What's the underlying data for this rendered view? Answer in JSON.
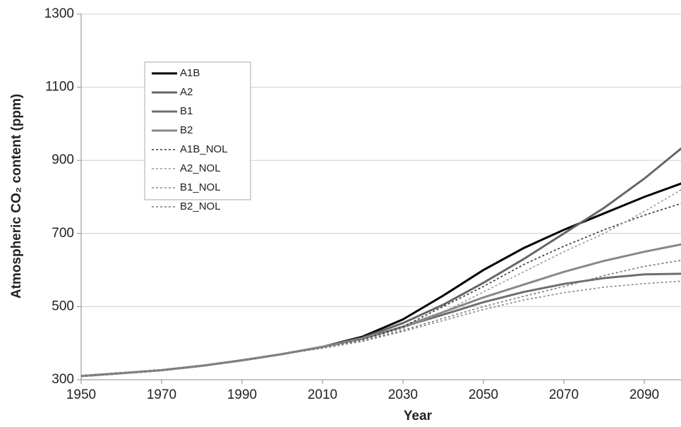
{
  "chart_data": {
    "type": "line",
    "xlabel": "Year",
    "ylabel": "Atmospheric CO₂ content (ppm)",
    "x": [
      1950,
      1960,
      1970,
      1980,
      1990,
      2000,
      2010,
      2020,
      2030,
      2040,
      2050,
      2060,
      2070,
      2080,
      2090,
      2100
    ],
    "xlim": [
      1950,
      2100
    ],
    "xticks": [
      1950,
      1970,
      1990,
      2010,
      2030,
      2050,
      2070,
      2090
    ],
    "ylim": [
      300,
      1300
    ],
    "yticks": [
      300,
      500,
      700,
      900,
      1100,
      1300
    ],
    "grid": true,
    "legend": "upper left",
    "series": [
      {
        "name": "A1B",
        "color": "#000000",
        "style": "solid",
        "values": [
          310,
          318,
          326,
          338,
          353,
          370,
          390,
          418,
          465,
          530,
          600,
          660,
          710,
          755,
          800,
          840
        ]
      },
      {
        "name": "A2",
        "color": "#666666",
        "style": "solid",
        "values": [
          310,
          318,
          326,
          338,
          353,
          370,
          390,
          415,
          455,
          505,
          565,
          630,
          700,
          770,
          850,
          940
        ]
      },
      {
        "name": "B1",
        "color": "#6e6e6e",
        "style": "solid",
        "values": [
          310,
          318,
          326,
          338,
          353,
          370,
          390,
          413,
          445,
          478,
          512,
          540,
          562,
          578,
          588,
          590
        ]
      },
      {
        "name": "B2",
        "color": "#888888",
        "style": "solid",
        "values": [
          310,
          318,
          326,
          338,
          353,
          370,
          390,
          412,
          445,
          485,
          525,
          560,
          595,
          625,
          650,
          672
        ]
      },
      {
        "name": "A1B_NOL",
        "color": "#333333",
        "style": "dotted",
        "values": [
          310,
          318,
          326,
          338,
          353,
          370,
          388,
          410,
          445,
          500,
          555,
          615,
          665,
          710,
          750,
          785
        ]
      },
      {
        "name": "A2_NOL",
        "color": "#999999",
        "style": "dotted",
        "values": [
          310,
          318,
          326,
          338,
          353,
          370,
          388,
          408,
          440,
          485,
          540,
          595,
          650,
          700,
          760,
          825
        ]
      },
      {
        "name": "B1_NOL",
        "color": "#888888",
        "style": "dotted",
        "values": [
          310,
          318,
          326,
          338,
          353,
          370,
          386,
          405,
          432,
          462,
          492,
          518,
          538,
          553,
          563,
          570
        ]
      },
      {
        "name": "B2_NOL",
        "color": "#777777",
        "style": "dotted",
        "values": [
          310,
          318,
          326,
          338,
          353,
          370,
          387,
          406,
          435,
          468,
          500,
          528,
          555,
          585,
          610,
          628
        ]
      }
    ]
  }
}
